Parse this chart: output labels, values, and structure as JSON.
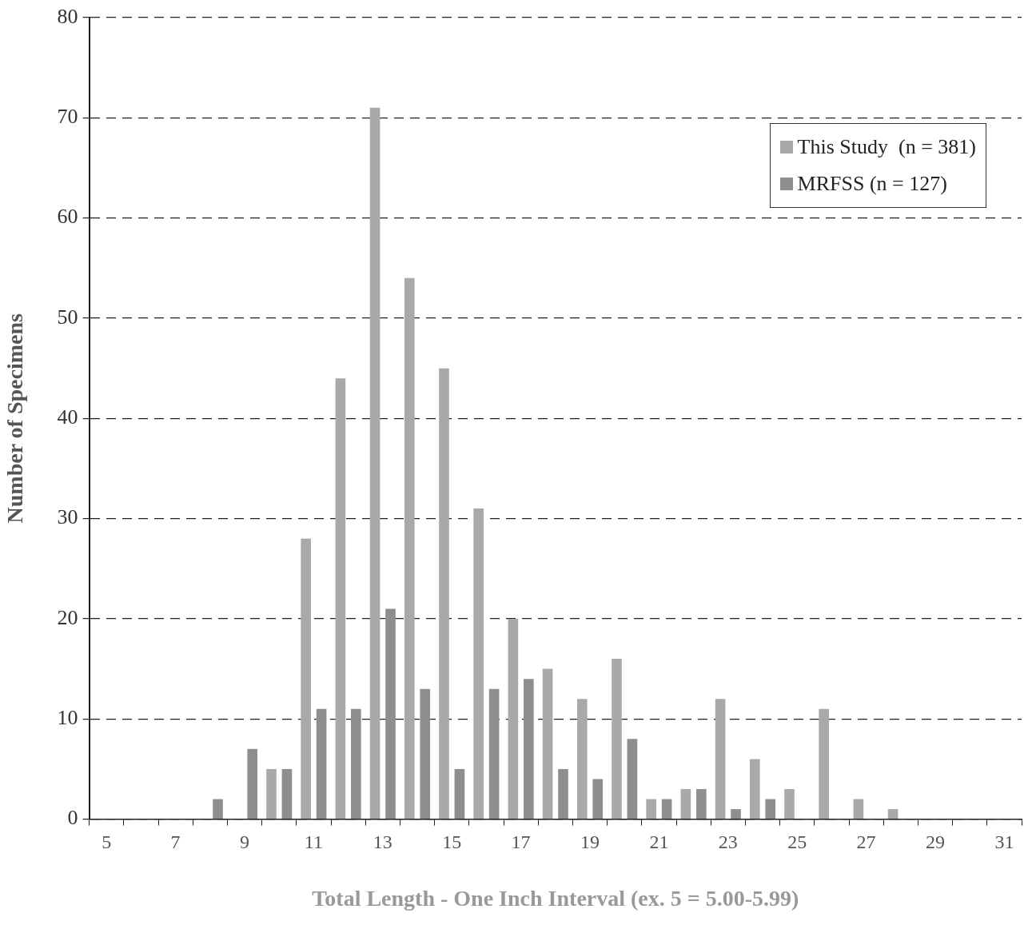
{
  "chart_data": {
    "type": "bar",
    "xlabel": "Total Length - One Inch Interval (ex. 5 = 5.00-5.99)",
    "ylabel": "Number of Specimens",
    "categories": [
      "5",
      null,
      "7",
      null,
      "9",
      null,
      "11",
      null,
      "13",
      null,
      "15",
      null,
      "17",
      null,
      "19",
      null,
      "21",
      null,
      "23",
      null,
      "25",
      null,
      "27",
      null,
      "29",
      null,
      "31"
    ],
    "series": [
      {
        "name": "This Study  (n = 381)",
        "color": "#a9a9a9",
        "values": [
          0,
          0,
          0,
          0,
          0,
          5,
          28,
          44,
          71,
          54,
          45,
          31,
          20,
          15,
          12,
          16,
          2,
          3,
          12,
          6,
          3,
          11,
          2,
          1,
          0,
          0,
          0
        ]
      },
      {
        "name": "MRFSS (n = 127)",
        "color": "#8e8e8e",
        "values": [
          0,
          0,
          0,
          2,
          7,
          5,
          11,
          11,
          21,
          13,
          5,
          13,
          14,
          5,
          4,
          8,
          2,
          3,
          1,
          2,
          0,
          0,
          0,
          0,
          0,
          0,
          0
        ]
      }
    ],
    "ylim": [
      0,
      80
    ],
    "yticks": [
      0,
      10,
      20,
      30,
      40,
      50,
      60,
      70,
      80
    ],
    "grid": "y",
    "legend": "top right"
  }
}
